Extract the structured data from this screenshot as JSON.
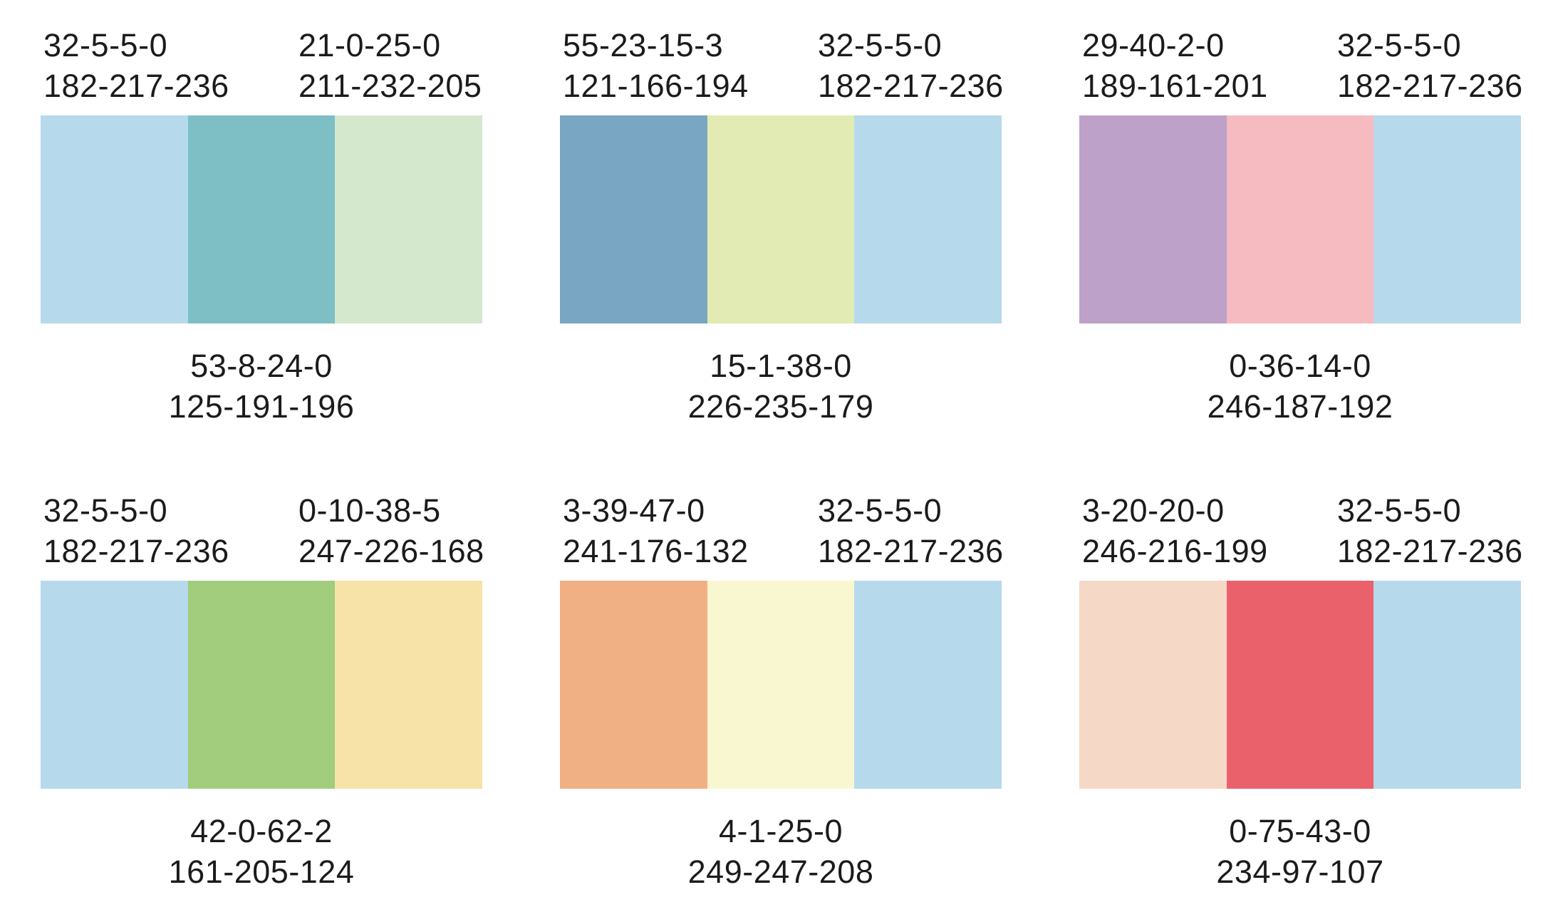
{
  "page": {
    "background": "#ffffff",
    "text_color": "#1b1b1b",
    "description_colors": {
      "light_blue": "#B6D9EC",
      "teal": "#7DBFC4",
      "pale_green": "#D3E8CD",
      "steel_blue": "#79A6C2",
      "pale_yellow_green": "#E2EBB3",
      "lavender": "#BDA1C9",
      "pink": "#F6BBC0",
      "green": "#A1CD7C",
      "sand_yellow": "#F7E2A8",
      "peach_orange": "#F1B084",
      "cream": "#F9F7D0",
      "light_peach": "#F6D8C7",
      "coral_red": "#EA616B"
    }
  },
  "palettes": [
    {
      "position": "top-left",
      "left_label": {
        "cmyk": "32-5-5-0",
        "rgb": "182-217-236"
      },
      "right_label": {
        "cmyk": "21-0-25-0",
        "rgb": "211-232-205"
      },
      "bottom_label": {
        "cmyk": "53-8-24-0",
        "rgb": "125-191-196"
      },
      "colors": [
        "#B6D9EC",
        "#7DBFC4",
        "#D3E8CD"
      ]
    },
    {
      "position": "top-middle",
      "left_label": {
        "cmyk": "55-23-15-3",
        "rgb": "121-166-194"
      },
      "right_label": {
        "cmyk": "32-5-5-0",
        "rgb": "182-217-236"
      },
      "bottom_label": {
        "cmyk": "15-1-38-0",
        "rgb": "226-235-179"
      },
      "colors": [
        "#79A6C2",
        "#E2EBB3",
        "#B6D9EC"
      ]
    },
    {
      "position": "top-right",
      "left_label": {
        "cmyk": "29-40-2-0",
        "rgb": "189-161-201"
      },
      "right_label": {
        "cmyk": "32-5-5-0",
        "rgb": "182-217-236"
      },
      "bottom_label": {
        "cmyk": "0-36-14-0",
        "rgb": "246-187-192"
      },
      "colors": [
        "#BDA1C9",
        "#F6BBC0",
        "#B6D9EC"
      ]
    },
    {
      "position": "bottom-left",
      "left_label": {
        "cmyk": "32-5-5-0",
        "rgb": "182-217-236"
      },
      "right_label": {
        "cmyk": "0-10-38-5",
        "rgb": "247-226-168"
      },
      "bottom_label": {
        "cmyk": "42-0-62-2",
        "rgb": "161-205-124"
      },
      "colors": [
        "#B6D9EC",
        "#A1CD7C",
        "#F7E2A8"
      ]
    },
    {
      "position": "bottom-middle",
      "left_label": {
        "cmyk": "3-39-47-0",
        "rgb": "241-176-132"
      },
      "right_label": {
        "cmyk": "32-5-5-0",
        "rgb": "182-217-236"
      },
      "bottom_label": {
        "cmyk": "4-1-25-0",
        "rgb": "249-247-208"
      },
      "colors": [
        "#F1B084",
        "#F9F7D0",
        "#B6D9EC"
      ]
    },
    {
      "position": "bottom-right",
      "left_label": {
        "cmyk": "3-20-20-0",
        "rgb": "246-216-199"
      },
      "right_label": {
        "cmyk": "32-5-5-0",
        "rgb": "182-217-236"
      },
      "bottom_label": {
        "cmyk": "0-75-43-0",
        "rgb": "234-97-107"
      },
      "colors": [
        "#F6D8C7",
        "#EA616B",
        "#B6D9EC"
      ]
    }
  ]
}
